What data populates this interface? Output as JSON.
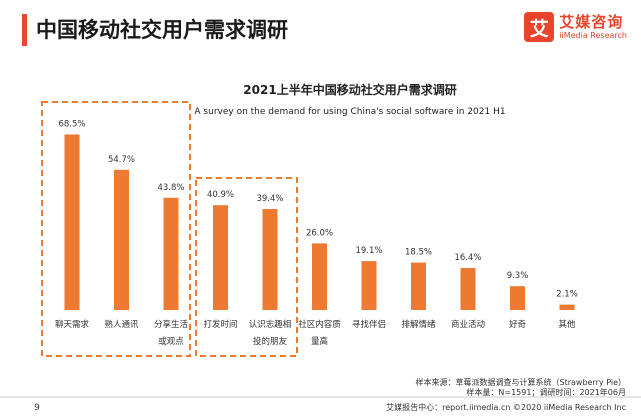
{
  "header": {
    "title": "中国移动社交用户需求调研",
    "logo_mark": "艾",
    "logo_cn": "艾媒咨询",
    "logo_en": "iiMedia Research"
  },
  "chart_data": {
    "type": "bar",
    "title": "2021上半年中国移动社交用户需求调研",
    "subtitle": "A survey on the demand for using China's  social software in 2021 H1",
    "categories": [
      [
        "聊天需求"
      ],
      [
        "熟人通讯"
      ],
      [
        "分享生活",
        "或观点"
      ],
      [
        "打发时间"
      ],
      [
        "认识志趣相",
        "投的朋友"
      ],
      [
        "社区内容质",
        "量高"
      ],
      [
        "寻找伴侣"
      ],
      [
        "排解情绪"
      ],
      [
        "商业活动"
      ],
      [
        "好奇"
      ],
      [
        "其他"
      ]
    ],
    "values": [
      68.5,
      54.7,
      43.8,
      40.9,
      39.4,
      26.0,
      19.1,
      18.5,
      16.4,
      9.3,
      2.1
    ],
    "value_labels": [
      "68.5%",
      "54.7%",
      "43.8%",
      "40.9%",
      "39.4%",
      "26.0%",
      "19.1%",
      "18.5%",
      "16.4%",
      "9.3%",
      "2.1%"
    ],
    "ylim": [
      0,
      80
    ],
    "grid": false,
    "highlight_groups": [
      [
        0,
        2
      ],
      [
        3,
        4
      ]
    ],
    "bar_color": "#ee7a32",
    "highlight_color": "#ee7a32"
  },
  "footer": {
    "source_line": "样本来源：草莓派数据调查与计算系统（Strawberry Pie）",
    "sample_line": "样本量：N=1591；调研时间：2021年06月",
    "brand_line": "艾媒报告中心：report.iimedia.cn  ©2020  iiMedia Research  Inc",
    "page_number": "9"
  }
}
